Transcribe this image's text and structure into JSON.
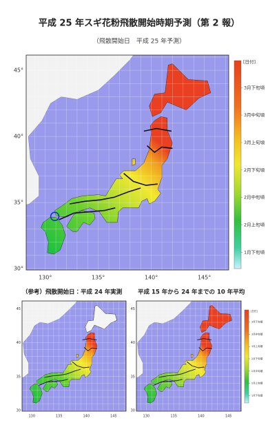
{
  "title": "平成 25 年スギ花粉飛散開始時期予測（第 2 報）",
  "subtitle": "（飛散開始日　平成 25 年予測）",
  "main_map": {
    "lat_ticks": [
      {
        "value": 45,
        "label": "45°"
      },
      {
        "value": 40,
        "label": "40°"
      },
      {
        "value": 35,
        "label": "35°"
      },
      {
        "value": 30,
        "label": "30°"
      }
    ],
    "lon_ticks": [
      {
        "value": 130,
        "label": "130°"
      },
      {
        "value": 135,
        "label": "135°"
      },
      {
        "value": 140,
        "label": "140°"
      },
      {
        "value": 145,
        "label": "145°"
      }
    ]
  },
  "legend": {
    "unit": "[日付]",
    "labels": [
      "3月下旬頃",
      "3月中旬頃",
      "3月上旬頃",
      "2月下旬頃",
      "2月中旬頃",
      "2月上旬頃",
      "1月下旬頃"
    ]
  },
  "reference_maps": [
    {
      "title": "（参考）飛散開始日：平成 24 年実測",
      "lat_ticks": [
        45,
        40,
        35,
        30
      ],
      "lon_ticks": [
        130,
        135,
        140,
        145
      ]
    },
    {
      "title": "平成 15 年から 24 年までの 10 年平均",
      "lat_ticks": [
        45,
        40,
        35,
        30
      ],
      "lon_ticks": [
        130,
        135,
        140,
        145
      ]
    }
  ]
}
